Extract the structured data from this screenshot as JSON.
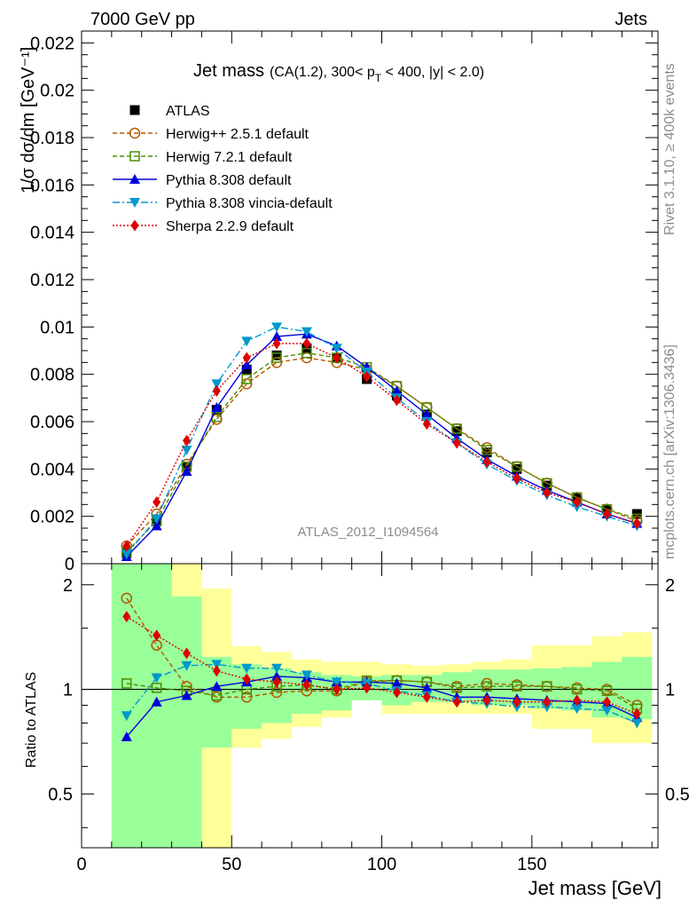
{
  "header": {
    "left": "7000 GeV pp",
    "right": "Jets",
    "side_rivet": "Rivet 3.1.10, ≥ 400k events",
    "side_mcplots": "mcplots.cern.ch [arXiv:1306.3436]",
    "watermark": "ATLAS_2012_I1094564"
  },
  "chart_data": [
    {
      "type": "line",
      "panel": "main",
      "title": "Jet mass",
      "subtitle": "(CA(1.2), 300< p_T < 400, |y| < 2.0)",
      "subtitle_parts": {
        "pre": "(CA(1.2), 300< p",
        "sub": "T",
        "post": " < 400, |y| < 2.0)"
      },
      "xlabel": "Jet mass [GeV]",
      "ylabel": "1/σ dσ/dm [GeV⁻¹]",
      "xlim": [
        0,
        192
      ],
      "ylim": [
        0,
        0.0225
      ],
      "yticks": [
        0,
        0.002,
        0.004,
        0.006,
        0.008,
        0.01,
        0.012,
        0.014,
        0.016,
        0.018,
        0.02,
        0.022
      ],
      "ytick_labels": [
        "0",
        "0.002",
        "0.004",
        "0.006",
        "0.008",
        "0.01",
        "0.012",
        "0.014",
        "0.016",
        "0.018",
        "0.02",
        "0.022"
      ],
      "x": [
        15,
        25,
        35,
        45,
        55,
        65,
        75,
        85,
        95,
        105,
        115,
        125,
        135,
        145,
        155,
        165,
        175,
        185
      ],
      "legend_position": "top-left",
      "series": [
        {
          "name": "ATLAS",
          "color": "#000000",
          "marker": "square-filled",
          "dash": "none",
          "values": [
            0.00045,
            0.0018,
            0.0041,
            0.0065,
            0.0082,
            0.0088,
            0.0091,
            0.0087,
            0.0078,
            0.0071,
            0.0063,
            0.0056,
            0.0047,
            0.004,
            0.0033,
            0.0028,
            0.0023,
            0.0021
          ]
        },
        {
          "name": "Herwig++ 2.5.1 default",
          "color": "#b35900",
          "marker": "circle-open",
          "dash": "5,3",
          "values": [
            0.00075,
            0.0021,
            0.0042,
            0.0061,
            0.0076,
            0.0085,
            0.0087,
            0.0085,
            0.0082,
            0.0075,
            0.0066,
            0.0057,
            0.0049,
            0.0041,
            0.0034,
            0.0028,
            0.0023,
            0.0018
          ]
        },
        {
          "name": "Herwig 7.2.1 default",
          "color": "#4d8c00",
          "marker": "square-open",
          "dash": "5,3",
          "values": [
            0.0005,
            0.0018,
            0.0041,
            0.0062,
            0.0078,
            0.0087,
            0.0089,
            0.0087,
            0.0083,
            0.0075,
            0.0066,
            0.0057,
            0.0048,
            0.0041,
            0.0034,
            0.0028,
            0.0023,
            0.0019
          ]
        },
        {
          "name": "Pythia 8.308 default",
          "color": "#0000dd",
          "marker": "triangle-up",
          "dash": "none",
          "values": [
            0.0003,
            0.0016,
            0.0039,
            0.0066,
            0.0084,
            0.0096,
            0.0097,
            0.0092,
            0.0083,
            0.0073,
            0.0063,
            0.0053,
            0.0044,
            0.0037,
            0.0031,
            0.0026,
            0.0021,
            0.0017
          ]
        },
        {
          "name": "Pythia 8.308 vincia-default",
          "color": "#0099cc",
          "marker": "triangle-down",
          "dash": "8,3,2,3",
          "values": [
            0.0004,
            0.0019,
            0.0048,
            0.0076,
            0.0094,
            0.01,
            0.0098,
            0.0091,
            0.0081,
            0.007,
            0.006,
            0.0051,
            0.0042,
            0.0035,
            0.0029,
            0.0024,
            0.002,
            0.0016
          ]
        },
        {
          "name": "Sherpa 2.2.9 default",
          "color": "#dd0000",
          "marker": "diamond",
          "dash": "2,2",
          "values": [
            0.00075,
            0.0026,
            0.0052,
            0.0073,
            0.0087,
            0.0093,
            0.0093,
            0.0087,
            0.0079,
            0.0069,
            0.0059,
            0.0051,
            0.0043,
            0.0036,
            0.003,
            0.0026,
            0.0021,
            0.0017
          ]
        }
      ]
    },
    {
      "type": "line",
      "panel": "ratio",
      "xlabel": "Jet mass [GeV]",
      "ylabel": "Ratio to ATLAS",
      "xlim": [
        0,
        192
      ],
      "ylim": [
        0.35,
        2.3
      ],
      "reference_line": 1,
      "xticks": [
        0,
        50,
        100,
        150
      ],
      "xtick_labels": [
        "0",
        "50",
        "100",
        "150"
      ],
      "yticks": [
        0.5,
        1,
        2
      ],
      "ytick_labels": [
        "0.5",
        "1",
        "2"
      ],
      "bands": {
        "bin_edges": [
          10,
          20,
          30,
          40,
          50,
          60,
          70,
          80,
          90,
          100,
          110,
          120,
          130,
          140,
          150,
          160,
          170,
          180,
          190
        ],
        "stat": {
          "color": "#99ff99",
          "low": [
            0.35,
            0.35,
            0.35,
            0.68,
            0.77,
            0.8,
            0.85,
            0.87,
            0.93,
            0.9,
            0.92,
            0.92,
            0.9,
            0.9,
            0.88,
            0.87,
            0.83,
            0.82
          ],
          "high": [
            2.3,
            2.3,
            1.85,
            1.24,
            1.18,
            1.15,
            1.12,
            1.1,
            1.09,
            1.1,
            1.1,
            1.12,
            1.14,
            1.14,
            1.15,
            1.16,
            1.2,
            1.24
          ]
        },
        "syst": {
          "color": "#ffff99",
          "low": [
            0.35,
            0.35,
            0.35,
            0.35,
            0.68,
            0.72,
            0.78,
            0.83,
            0.93,
            0.85,
            0.85,
            0.85,
            0.85,
            0.85,
            0.77,
            0.77,
            0.7,
            0.7
          ],
          "high": [
            2.3,
            2.3,
            2.3,
            1.95,
            1.33,
            1.28,
            1.22,
            1.2,
            1.2,
            1.18,
            1.17,
            1.18,
            1.2,
            1.22,
            1.34,
            1.34,
            1.42,
            1.46
          ]
        }
      },
      "x": [
        15,
        25,
        35,
        45,
        55,
        65,
        75,
        85,
        95,
        105,
        115,
        125,
        135,
        145,
        155,
        165,
        175,
        185
      ],
      "series": [
        {
          "name": "Herwig++ 2.5.1 default",
          "color": "#b35900",
          "marker": "circle-open",
          "dash": "5,3",
          "values": [
            1.83,
            1.34,
            1.02,
            0.95,
            0.95,
            0.98,
            0.99,
            0.99,
            1.05,
            1.06,
            1.05,
            1.02,
            1.04,
            1.03,
            1.02,
            1.01,
            1.0,
            0.9
          ]
        },
        {
          "name": "Herwig 7.2.1 default",
          "color": "#4d8c00",
          "marker": "square-open",
          "dash": "5,3",
          "values": [
            1.04,
            1.01,
            0.99,
            0.96,
            1.0,
            1.02,
            1.03,
            1.0,
            1.06,
            1.06,
            1.05,
            1.01,
            1.02,
            1.02,
            1.02,
            1.0,
            0.99,
            0.88
          ]
        },
        {
          "name": "Pythia 8.308 default",
          "color": "#0000dd",
          "marker": "triangle-up",
          "dash": "none",
          "values": [
            0.73,
            0.92,
            0.96,
            1.02,
            1.05,
            1.09,
            1.08,
            1.05,
            1.05,
            1.04,
            1.01,
            0.95,
            0.95,
            0.94,
            0.93,
            0.92,
            0.91,
            0.83
          ]
        },
        {
          "name": "Pythia 8.308 vincia-default",
          "color": "#0099cc",
          "marker": "triangle-down",
          "dash": "8,3,2,3",
          "values": [
            0.84,
            1.08,
            1.17,
            1.18,
            1.15,
            1.15,
            1.1,
            1.05,
            1.04,
            0.99,
            0.96,
            0.92,
            0.91,
            0.89,
            0.89,
            0.88,
            0.87,
            0.8
          ]
        },
        {
          "name": "Sherpa 2.2.9 default",
          "color": "#dd0000",
          "marker": "diamond",
          "dash": "2,2",
          "values": [
            1.62,
            1.43,
            1.27,
            1.13,
            1.07,
            1.05,
            1.03,
            1.0,
            1.01,
            0.98,
            0.95,
            0.92,
            0.93,
            0.92,
            0.92,
            0.93,
            0.92,
            0.85
          ]
        }
      ]
    }
  ]
}
